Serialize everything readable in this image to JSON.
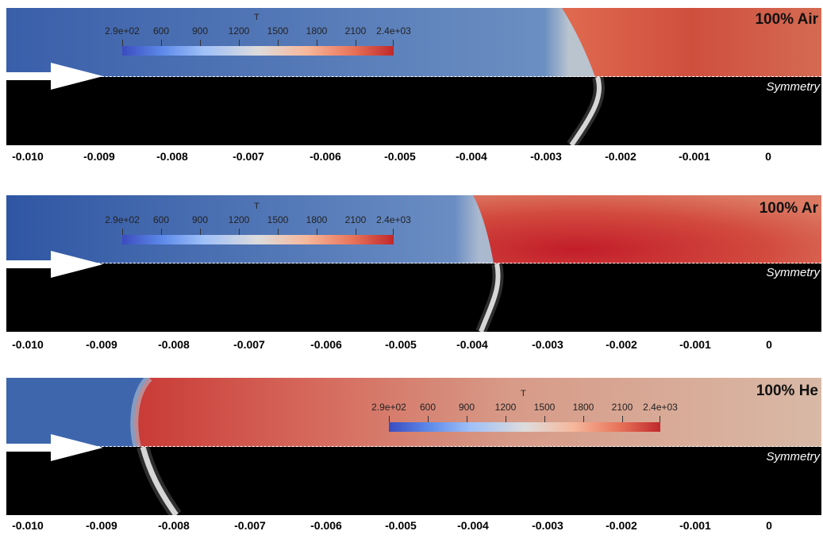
{
  "panels": [
    {
      "title": "100% Air",
      "symmetry_label": "Symmetry"
    },
    {
      "title": "100% Ar",
      "symmetry_label": "Symmetry"
    },
    {
      "title": "100% He",
      "symmetry_label": "Symmetry"
    }
  ],
  "colorbar": {
    "title": "T",
    "labels": [
      "2.9e+02",
      "600",
      "900",
      "1200",
      "1500",
      "1800",
      "2100",
      "2.4e+03"
    ],
    "colors": [
      "#3b4cc0",
      "#dddcdc",
      "#c0282b"
    ]
  },
  "axis": {
    "ticks": [
      "-0.010",
      "-0.009",
      "-0.008",
      "-0.007",
      "-0.006",
      "-0.005",
      "-0.004",
      "-0.003",
      "-0.002",
      "-0.001",
      "0"
    ]
  },
  "flame_front_x": [
    -0.0023,
    -0.0036,
    -0.0085
  ]
}
